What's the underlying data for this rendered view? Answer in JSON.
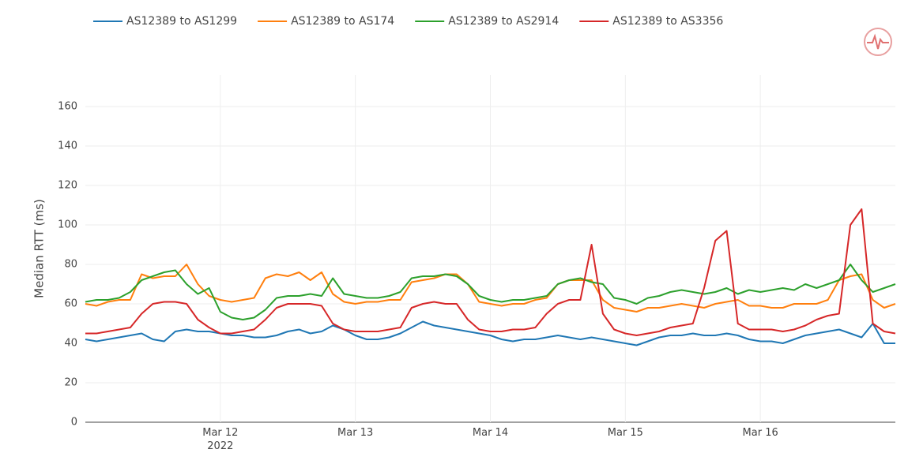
{
  "chart_data": {
    "type": "line",
    "y_label": "Median RTT (ms)",
    "x": [
      "2022-03-11T00:00",
      "2022-03-11T02:00",
      "2022-03-11T04:00",
      "2022-03-11T06:00",
      "2022-03-11T08:00",
      "2022-03-11T10:00",
      "2022-03-11T12:00",
      "2022-03-11T14:00",
      "2022-03-11T16:00",
      "2022-03-11T18:00",
      "2022-03-11T20:00",
      "2022-03-11T22:00",
      "2022-03-12T00:00",
      "2022-03-12T02:00",
      "2022-03-12T04:00",
      "2022-03-12T06:00",
      "2022-03-12T08:00",
      "2022-03-12T10:00",
      "2022-03-12T12:00",
      "2022-03-12T14:00",
      "2022-03-12T16:00",
      "2022-03-12T18:00",
      "2022-03-12T20:00",
      "2022-03-12T22:00",
      "2022-03-13T00:00",
      "2022-03-13T02:00",
      "2022-03-13T04:00",
      "2022-03-13T06:00",
      "2022-03-13T08:00",
      "2022-03-13T10:00",
      "2022-03-13T12:00",
      "2022-03-13T14:00",
      "2022-03-13T16:00",
      "2022-03-13T18:00",
      "2022-03-13T20:00",
      "2022-03-13T22:00",
      "2022-03-14T00:00",
      "2022-03-14T02:00",
      "2022-03-14T04:00",
      "2022-03-14T06:00",
      "2022-03-14T08:00",
      "2022-03-14T10:00",
      "2022-03-14T12:00",
      "2022-03-14T14:00",
      "2022-03-14T16:00",
      "2022-03-14T18:00",
      "2022-03-14T20:00",
      "2022-03-14T22:00",
      "2022-03-15T00:00",
      "2022-03-15T02:00",
      "2022-03-15T04:00",
      "2022-03-15T06:00",
      "2022-03-15T08:00",
      "2022-03-15T10:00",
      "2022-03-15T12:00",
      "2022-03-15T14:00",
      "2022-03-15T16:00",
      "2022-03-15T18:00",
      "2022-03-15T20:00",
      "2022-03-15T22:00",
      "2022-03-16T00:00",
      "2022-03-16T02:00",
      "2022-03-16T04:00",
      "2022-03-16T06:00",
      "2022-03-16T08:00",
      "2022-03-16T10:00",
      "2022-03-16T12:00",
      "2022-03-16T14:00",
      "2022-03-16T16:00",
      "2022-03-16T18:00",
      "2022-03-16T20:00",
      "2022-03-16T22:00",
      "2022-03-17T00:00"
    ],
    "series": [
      {
        "name": "AS12389 to AS1299",
        "color": "#1f77b4",
        "values": [
          42,
          41,
          42,
          43,
          44,
          45,
          42,
          41,
          46,
          47,
          46,
          46,
          45,
          44,
          44,
          43,
          43,
          44,
          46,
          47,
          45,
          46,
          49,
          47,
          44,
          42,
          42,
          43,
          45,
          48,
          51,
          49,
          48,
          47,
          46,
          45,
          44,
          42,
          41,
          42,
          42,
          43,
          44,
          43,
          42,
          43,
          42,
          41,
          40,
          39,
          41,
          43,
          44,
          44,
          45,
          44,
          44,
          45,
          44,
          42,
          41,
          41,
          40,
          42,
          44,
          45,
          46,
          47,
          45,
          43,
          50,
          40,
          40
        ]
      },
      {
        "name": "AS12389 to AS174",
        "color": "#ff7f0e",
        "values": [
          60,
          59,
          61,
          62,
          62,
          75,
          73,
          74,
          74,
          80,
          70,
          64,
          62,
          61,
          62,
          63,
          73,
          75,
          74,
          76,
          72,
          76,
          65,
          61,
          60,
          61,
          61,
          62,
          62,
          71,
          72,
          73,
          75,
          75,
          70,
          61,
          60,
          59,
          60,
          60,
          62,
          63,
          70,
          72,
          72,
          72,
          62,
          58,
          57,
          56,
          58,
          58,
          59,
          60,
          59,
          58,
          60,
          61,
          62,
          59,
          59,
          58,
          58,
          60,
          60,
          60,
          62,
          72,
          74,
          75,
          62,
          58,
          60
        ]
      },
      {
        "name": "AS12389 to AS2914",
        "color": "#2ca02c",
        "values": [
          61,
          62,
          62,
          63,
          66,
          72,
          74,
          76,
          77,
          70,
          65,
          68,
          56,
          53,
          52,
          53,
          57,
          63,
          64,
          64,
          65,
          64,
          73,
          65,
          64,
          63,
          63,
          64,
          66,
          73,
          74,
          74,
          75,
          74,
          70,
          64,
          62,
          61,
          62,
          62,
          63,
          64,
          70,
          72,
          73,
          71,
          70,
          63,
          62,
          60,
          63,
          64,
          66,
          67,
          66,
          65,
          66,
          68,
          65,
          67,
          66,
          67,
          68,
          67,
          70,
          68,
          70,
          72,
          80,
          72,
          66,
          68,
          70
        ]
      },
      {
        "name": "AS12389 to AS3356",
        "color": "#d62728",
        "values": [
          45,
          45,
          46,
          47,
          48,
          55,
          60,
          61,
          61,
          60,
          52,
          48,
          45,
          45,
          46,
          47,
          52,
          58,
          60,
          60,
          60,
          59,
          50,
          47,
          46,
          46,
          46,
          47,
          48,
          58,
          60,
          61,
          60,
          60,
          52,
          47,
          46,
          46,
          47,
          47,
          48,
          55,
          60,
          62,
          62,
          90,
          55,
          47,
          45,
          44,
          45,
          46,
          48,
          49,
          50,
          68,
          92,
          97,
          50,
          47,
          47,
          47,
          46,
          47,
          49,
          52,
          54,
          55,
          100,
          108,
          50,
          46,
          45
        ]
      }
    ],
    "xlim": [
      "2022-03-11T00:00",
      "2022-03-17T00:00"
    ],
    "xticks": [
      {
        "value": "2022-03-12T00:00",
        "label": "Mar 12\n2022"
      },
      {
        "value": "2022-03-13T00:00",
        "label": "Mar 13"
      },
      {
        "value": "2022-03-14T00:00",
        "label": "Mar 14"
      },
      {
        "value": "2022-03-15T00:00",
        "label": "Mar 15"
      },
      {
        "value": "2022-03-16T00:00",
        "label": "Mar 16"
      }
    ],
    "ylim": [
      0,
      176
    ],
    "yticks": [
      0,
      20,
      40,
      60,
      80,
      100,
      120,
      140,
      160
    ],
    "grid": true,
    "legend": "top"
  }
}
